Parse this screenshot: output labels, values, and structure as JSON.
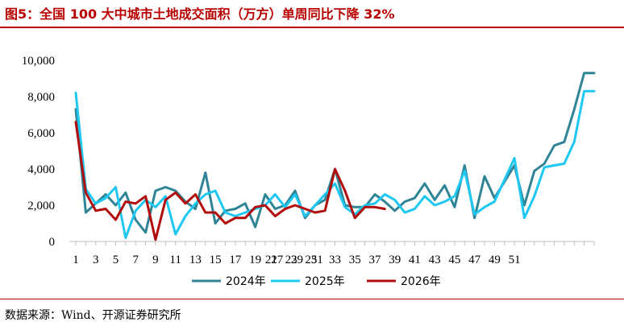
{
  "header": {
    "title": "图5：全国 100 大中城市土地成交面积（万方）单周同比下降 32%"
  },
  "footer": {
    "source": "数据来源：Wind、开源证券研究所"
  },
  "colors": {
    "title": "#b80000",
    "series_2024": "#2f8496",
    "series_2025": "#1ec8f2",
    "series_2026": "#b20d0d"
  },
  "chart_data": {
    "type": "line",
    "title": "",
    "xlabel": "",
    "ylabel": "",
    "ylim": [
      0,
      10000
    ],
    "yticks": [
      "0",
      "2,000",
      "4,000",
      "6,000",
      "8,000",
      "10,000"
    ],
    "yticks_values": [
      0,
      2000,
      4000,
      6000,
      8000,
      10000
    ],
    "xticks": [
      {
        "label": "1",
        "week": 1
      },
      {
        "label": "3",
        "week": 3
      },
      {
        "label": "5",
        "week": 5
      },
      {
        "label": "7",
        "week": 7
      },
      {
        "label": "9",
        "week": 9
      },
      {
        "label": "11",
        "week": 11
      },
      {
        "label": "13",
        "week": 13
      },
      {
        "label": "15",
        "week": 15
      },
      {
        "label": "17",
        "week": 17
      },
      {
        "label": "19",
        "week": 19
      },
      {
        "label": "21",
        "week": 20.6
      },
      {
        "label": "27",
        "week": 21.2
      },
      {
        "label": "23",
        "week": 22.6
      },
      {
        "label": "29",
        "week": 23.2
      },
      {
        "label": "25",
        "week": 24.6
      },
      {
        "label": "31",
        "week": 25.2
      },
      {
        "label": "33",
        "week": 27
      },
      {
        "label": "35",
        "week": 29
      },
      {
        "label": "37",
        "week": 31
      },
      {
        "label": "39",
        "week": 33
      },
      {
        "label": "41",
        "week": 35
      },
      {
        "label": "43",
        "week": 37
      },
      {
        "label": "45",
        "week": 39
      },
      {
        "label": "47",
        "week": 41
      },
      {
        "label": "49",
        "week": 43
      },
      {
        "label": "51",
        "week": 45
      }
    ],
    "grid": false,
    "legend": "bottom",
    "series": [
      {
        "name": "2024年",
        "color": "#2f8496",
        "x": [
          1,
          2,
          3,
          4,
          5,
          6,
          7,
          8,
          9,
          10,
          11,
          12,
          13,
          14,
          15,
          16,
          17,
          18,
          19,
          20,
          21,
          22,
          23,
          24,
          25,
          26,
          27,
          28,
          29,
          30,
          31,
          32,
          33,
          34,
          35,
          36,
          37,
          38,
          39,
          40,
          41,
          42,
          43,
          44,
          45,
          46,
          47,
          48,
          49,
          50,
          51,
          52,
          53
        ],
        "y": [
          7300,
          1600,
          2100,
          2600,
          2000,
          2700,
          1200,
          500,
          2800,
          3000,
          2800,
          2200,
          1800,
          3800,
          1000,
          1700,
          1800,
          2100,
          800,
          2600,
          1800,
          2000,
          2800,
          1300,
          2000,
          2300,
          4000,
          2000,
          1900,
          1900,
          2600,
          2200,
          1700,
          2200,
          2400,
          3200,
          2300,
          3100,
          1900,
          4200,
          1300,
          3600,
          2400,
          3300,
          4200,
          2000,
          3900,
          4300,
          5300,
          5500,
          7300,
          9300,
          9300
        ]
      },
      {
        "name": "2025年",
        "color": "#1ec8f2",
        "x": [
          1,
          2,
          3,
          4,
          5,
          6,
          7,
          8,
          9,
          10,
          11,
          12,
          13,
          14,
          15,
          16,
          17,
          18,
          19,
          20,
          21,
          22,
          23,
          24,
          25,
          26,
          27,
          28,
          29,
          30,
          31,
          32,
          33,
          34,
          35,
          36,
          37,
          38,
          39,
          40,
          41,
          42,
          43,
          44,
          45,
          46,
          47,
          48,
          49,
          50,
          51,
          52,
          53
        ],
        "y": [
          8200,
          2900,
          2100,
          2400,
          3000,
          200,
          1700,
          2300,
          1900,
          2500,
          400,
          1400,
          2100,
          2600,
          2800,
          1600,
          1400,
          1600,
          1800,
          2000,
          2600,
          1900,
          2600,
          1400,
          2000,
          2600,
          3200,
          1900,
          1500,
          2000,
          2100,
          2600,
          2300,
          1600,
          1800,
          2500,
          2000,
          2200,
          2500,
          3900,
          1500,
          1900,
          2200,
          3400,
          4600,
          1300,
          2500,
          4100,
          4200,
          4300,
          5500,
          8300,
          8300
        ]
      },
      {
        "name": "2026年",
        "color": "#b20d0d",
        "x": [
          1,
          2,
          3,
          4,
          5,
          6,
          7,
          8,
          9,
          10,
          11,
          12,
          13,
          14,
          15,
          16,
          17,
          18,
          19,
          20,
          21,
          22,
          23,
          24,
          25,
          26,
          27,
          28,
          29,
          30,
          31,
          32
        ],
        "y": [
          6600,
          2700,
          1700,
          1800,
          1200,
          2200,
          2100,
          2500,
          100,
          2300,
          2700,
          2100,
          2600,
          1600,
          1600,
          1000,
          1300,
          1300,
          1900,
          2000,
          1400,
          1800,
          2000,
          1800,
          1600,
          1700,
          4000,
          2800,
          1300,
          1900,
          1900,
          1800
        ]
      }
    ]
  }
}
